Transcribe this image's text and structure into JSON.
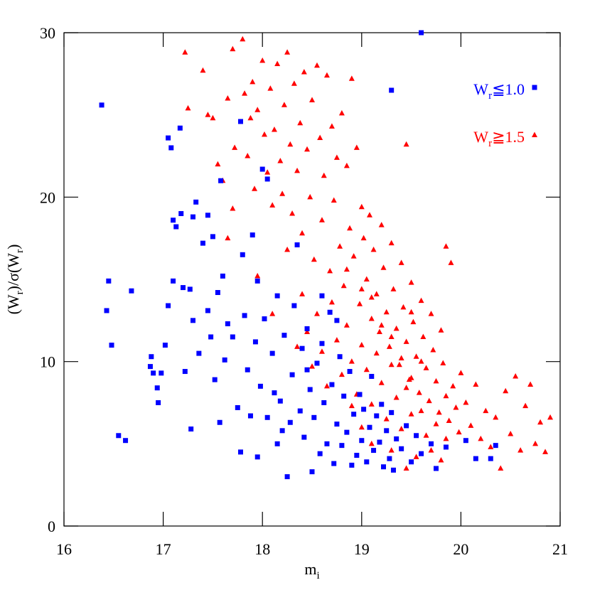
{
  "chart_data": {
    "type": "scatter",
    "xlabel": [
      "m",
      "i"
    ],
    "ylabel": [
      "(W",
      "r",
      ")/σ(W",
      "r",
      ")"
    ],
    "xlim": [
      16,
      21
    ],
    "xticks": [
      16,
      17,
      18,
      19,
      20,
      21
    ],
    "ylim": [
      0,
      30
    ],
    "yticks": [
      0,
      10,
      20,
      30
    ],
    "series": [
      {
        "name": [
          "W",
          "r",
          "≦1.0"
        ],
        "color": "#0000ff",
        "marker": "square",
        "x": [
          16.38,
          16.45,
          16.43,
          16.48,
          16.55,
          16.62,
          16.68,
          16.88,
          16.87,
          16.9,
          16.94,
          16.95,
          16.98,
          17.02,
          17.05,
          17.05,
          17.08,
          17.1,
          17.1,
          17.13,
          17.17,
          17.18,
          17.2,
          17.22,
          17.27,
          17.28,
          17.3,
          17.33,
          17.3,
          17.36,
          17.4,
          17.45,
          17.45,
          17.48,
          17.5,
          17.52,
          17.55,
          17.57,
          17.58,
          17.6,
          17.62,
          17.65,
          17.7,
          17.75,
          17.78,
          17.78,
          17.8,
          17.82,
          17.85,
          17.88,
          17.9,
          17.93,
          17.95,
          17.98,
          18.0,
          18.02,
          18.05,
          18.05,
          18.1,
          18.12,
          18.15,
          18.18,
          18.2,
          18.22,
          18.25,
          18.28,
          18.3,
          18.32,
          18.35,
          18.38,
          18.4,
          18.42,
          18.45,
          18.48,
          18.5,
          18.52,
          18.55,
          18.58,
          18.6,
          18.62,
          18.65,
          18.68,
          18.7,
          18.72,
          18.75,
          18.78,
          18.8,
          18.82,
          18.85,
          18.88,
          18.9,
          18.92,
          18.95,
          18.98,
          19.0,
          19.02,
          19.05,
          19.08,
          19.1,
          19.12,
          19.15,
          19.18,
          19.2,
          19.22,
          19.25,
          19.28,
          19.3,
          19.3,
          19.32,
          19.35,
          19.4,
          19.45,
          19.5,
          19.55,
          19.6,
          19.6,
          19.7,
          19.75,
          19.85,
          20.05,
          20.15,
          20.3,
          20.35,
          18.6,
          18.75,
          18.45,
          18.15,
          17.95
        ],
        "values": [
          25.6,
          14.9,
          13.1,
          11.0,
          5.5,
          5.2,
          14.3,
          10.3,
          9.7,
          9.3,
          8.4,
          7.5,
          9.3,
          11.0,
          13.4,
          23.6,
          23.0,
          14.9,
          18.6,
          18.2,
          24.2,
          19.0,
          14.5,
          9.4,
          14.4,
          5.9,
          18.8,
          19.7,
          12.5,
          10.5,
          17.2,
          13.1,
          18.9,
          11.5,
          17.6,
          8.9,
          14.2,
          6.3,
          21.0,
          15.2,
          10.1,
          12.3,
          11.5,
          7.2,
          24.6,
          4.5,
          16.5,
          12.8,
          9.5,
          6.7,
          17.7,
          11.2,
          14.9,
          8.5,
          21.7,
          12.6,
          21.1,
          6.6,
          10.5,
          8.1,
          14.0,
          7.6,
          5.8,
          11.6,
          3.0,
          6.3,
          9.2,
          13.4,
          17.1,
          7.0,
          10.8,
          5.4,
          12.0,
          8.3,
          3.3,
          6.6,
          9.9,
          4.4,
          11.1,
          7.5,
          5.0,
          13.0,
          8.6,
          3.8,
          6.2,
          10.3,
          4.9,
          7.9,
          5.7,
          9.4,
          3.7,
          6.8,
          4.3,
          8.0,
          5.2,
          7.1,
          3.9,
          6.0,
          9.1,
          4.6,
          6.7,
          5.1,
          7.4,
          3.6,
          5.8,
          4.1,
          26.5,
          6.9,
          3.4,
          5.3,
          4.7,
          6.1,
          3.9,
          5.5,
          30.0,
          4.4,
          5.0,
          3.5,
          4.8,
          5.2,
          4.1,
          4.1,
          4.9,
          14.0,
          12.5,
          9.5,
          5.0,
          4.2
        ]
      },
      {
        "name": [
          "W",
          "r",
          "≧1.5"
        ],
        "color": "#ff0000",
        "marker": "triangle",
        "x": [
          17.22,
          17.25,
          17.4,
          17.45,
          17.5,
          17.55,
          17.6,
          17.65,
          17.7,
          17.72,
          17.8,
          17.82,
          17.85,
          17.88,
          17.9,
          17.92,
          17.95,
          18.0,
          18.02,
          18.05,
          18.08,
          18.1,
          18.12,
          18.15,
          18.18,
          18.2,
          18.22,
          18.25,
          18.28,
          18.3,
          18.32,
          18.35,
          18.38,
          18.4,
          18.42,
          18.45,
          18.48,
          18.5,
          18.52,
          18.55,
          18.58,
          18.6,
          18.62,
          18.65,
          18.68,
          18.7,
          18.72,
          18.75,
          18.78,
          18.8,
          18.82,
          18.85,
          18.88,
          18.9,
          18.92,
          18.95,
          18.98,
          19.0,
          19.02,
          19.05,
          19.08,
          19.1,
          19.12,
          19.15,
          19.18,
          19.2,
          19.22,
          19.25,
          19.28,
          19.3,
          19.32,
          19.35,
          19.38,
          19.4,
          19.42,
          19.45,
          19.45,
          19.48,
          19.5,
          19.52,
          19.55,
          19.58,
          19.6,
          19.62,
          19.65,
          19.68,
          19.7,
          19.72,
          19.75,
          19.78,
          19.8,
          19.82,
          19.85,
          19.85,
          19.88,
          19.9,
          19.92,
          19.95,
          19.98,
          20.0,
          20.05,
          20.1,
          20.15,
          20.2,
          20.25,
          20.3,
          20.35,
          20.4,
          20.45,
          20.5,
          20.55,
          20.6,
          20.65,
          20.7,
          20.75,
          20.8,
          20.85,
          20.9,
          18.4,
          18.45,
          18.5,
          18.55,
          18.6,
          18.65,
          18.7,
          18.75,
          18.8,
          18.85,
          18.9,
          18.95,
          19.0,
          19.05,
          19.1,
          19.15,
          19.2,
          19.25,
          19.3,
          19.35,
          19.4,
          19.45,
          19.5,
          19.55,
          19.6,
          19.65,
          19.7,
          19.75,
          19.8,
          19.85,
          17.95,
          18.1,
          18.25,
          18.35,
          17.7,
          17.65,
          18.85,
          19.0,
          19.1,
          19.2,
          19.3,
          19.4,
          19.5,
          19.5,
          19.6,
          19.0,
          19.1,
          19.3,
          18.9,
          19.45
        ],
        "values": [
          28.8,
          25.4,
          27.7,
          25.0,
          24.8,
          22.0,
          21.0,
          26.0,
          29.0,
          23.0,
          29.6,
          26.3,
          22.5,
          24.8,
          27.0,
          20.5,
          25.3,
          28.3,
          23.8,
          21.5,
          26.6,
          19.5,
          24.1,
          28.1,
          22.2,
          20.2,
          25.6,
          28.8,
          23.2,
          19.0,
          26.9,
          21.6,
          24.5,
          17.8,
          27.6,
          22.9,
          20.0,
          25.9,
          16.2,
          28.0,
          23.6,
          18.6,
          21.3,
          27.4,
          15.5,
          24.3,
          19.8,
          22.4,
          17.0,
          25.1,
          14.6,
          21.9,
          18.1,
          27.2,
          16.4,
          23.0,
          13.5,
          19.4,
          17.5,
          15.0,
          18.9,
          12.6,
          16.8,
          14.1,
          11.8,
          18.3,
          15.7,
          13.0,
          10.9,
          17.2,
          14.4,
          12.0,
          9.8,
          16.0,
          13.3,
          23.2,
          11.2,
          8.9,
          14.8,
          12.4,
          10.3,
          8.1,
          13.7,
          11.5,
          9.6,
          7.6,
          12.9,
          10.7,
          8.8,
          6.9,
          11.9,
          9.9,
          17.0,
          7.9,
          6.4,
          16.0,
          8.5,
          7.2,
          5.7,
          9.3,
          7.5,
          6.1,
          8.6,
          5.3,
          7.0,
          4.8,
          6.6,
          3.5,
          8.2,
          5.6,
          9.1,
          4.6,
          7.3,
          8.6,
          5.0,
          6.3,
          4.5,
          6.6,
          14.1,
          11.8,
          9.7,
          12.9,
          10.6,
          8.5,
          13.6,
          11.3,
          9.2,
          12.2,
          10.0,
          8.0,
          11.0,
          9.5,
          7.4,
          10.5,
          8.7,
          6.5,
          9.8,
          7.8,
          5.9,
          8.4,
          6.8,
          4.2,
          7.0,
          5.5,
          4.6,
          6.2,
          4.0,
          5.3,
          15.2,
          12.9,
          16.8,
          10.9,
          19.3,
          17.5,
          15.6,
          14.4,
          13.9,
          12.2,
          11.5,
          10.2,
          9.0,
          13.0,
          10.0,
          6.0,
          5.0,
          4.6,
          7.3,
          3.5
        ]
      }
    ]
  }
}
